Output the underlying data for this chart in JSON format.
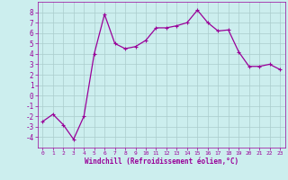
{
  "x": [
    0,
    1,
    2,
    3,
    4,
    5,
    6,
    7,
    8,
    9,
    10,
    11,
    12,
    13,
    14,
    15,
    16,
    17,
    18,
    19,
    20,
    21,
    22,
    23
  ],
  "y": [
    -2.5,
    -1.8,
    -2.8,
    -4.2,
    -2.0,
    4.0,
    7.8,
    5.0,
    4.5,
    4.7,
    5.3,
    6.5,
    6.5,
    6.7,
    7.0,
    8.2,
    7.0,
    6.2,
    6.3,
    4.2,
    2.8,
    2.8,
    3.0,
    2.5
  ],
  "line_color": "#990099",
  "marker": "+",
  "marker_size": 3,
  "linewidth": 0.9,
  "bg_color": "#cceeee",
  "grid_color": "#aacccc",
  "xlabel": "Windchill (Refroidissement éolien,°C)",
  "xlabel_color": "#990099",
  "tick_color": "#990099",
  "xlim": [
    -0.5,
    23.5
  ],
  "ylim": [
    -5,
    9
  ],
  "yticks": [
    -4,
    -3,
    -2,
    -1,
    0,
    1,
    2,
    3,
    4,
    5,
    6,
    7,
    8
  ],
  "xticks": [
    0,
    1,
    2,
    3,
    4,
    5,
    6,
    7,
    8,
    9,
    10,
    11,
    12,
    13,
    14,
    15,
    16,
    17,
    18,
    19,
    20,
    21,
    22,
    23
  ]
}
